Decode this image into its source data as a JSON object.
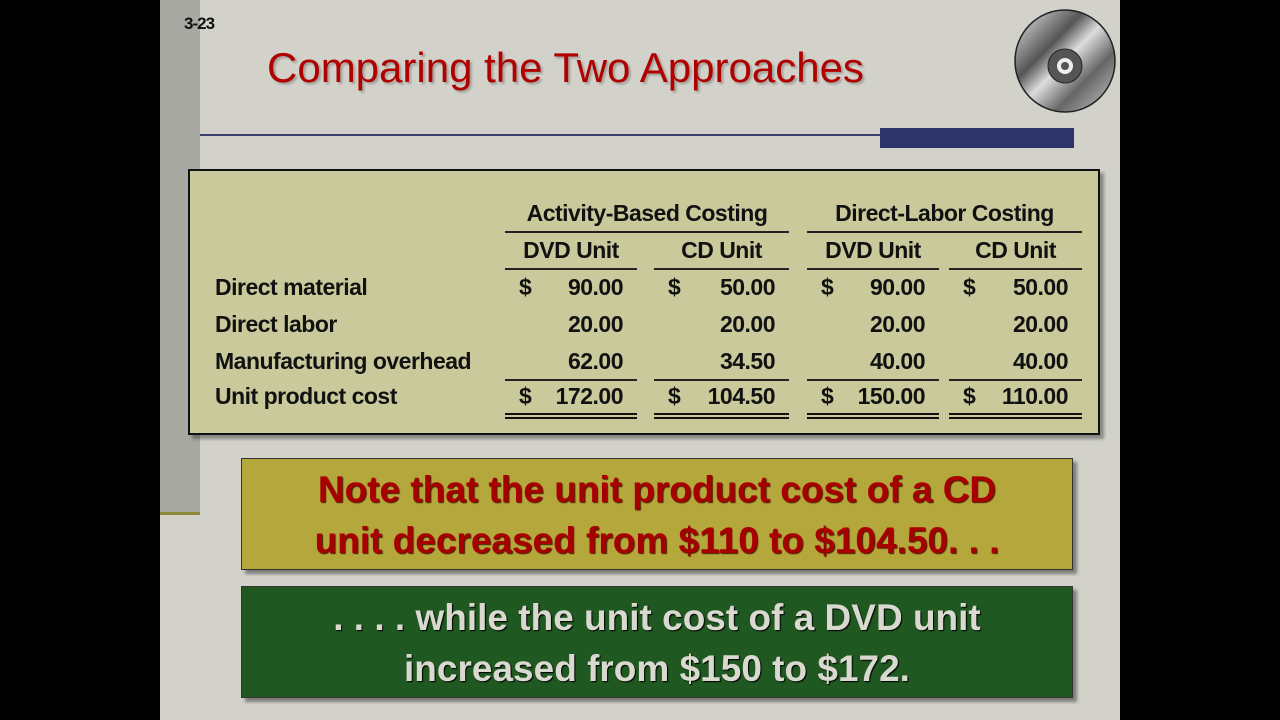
{
  "slide_number": "3-23",
  "title": "Comparing the Two Approaches",
  "colors": {
    "title": "#b00000",
    "table_bg": "#c9c99c",
    "note1_bg": "#b4a83c",
    "note2_bg": "#1f5820"
  },
  "icon": "cd-disc-icon",
  "table": {
    "groups": [
      "Activity-Based Costing",
      "Direct-Labor Costing"
    ],
    "columns": [
      "DVD Unit",
      "CD Unit",
      "DVD Unit",
      "CD Unit"
    ],
    "rows": [
      {
        "label": "Direct material",
        "cells": [
          [
            "$",
            "90.00"
          ],
          [
            "$",
            "50.00"
          ],
          [
            "$",
            "90.00"
          ],
          [
            "$",
            "50.00"
          ]
        ]
      },
      {
        "label": "Direct labor",
        "cells": [
          [
            "",
            "20.00"
          ],
          [
            "",
            "20.00"
          ],
          [
            "",
            "20.00"
          ],
          [
            "",
            "20.00"
          ]
        ]
      },
      {
        "label": "Manufacturing overhead",
        "cells": [
          [
            "",
            "62.00"
          ],
          [
            "",
            "34.50"
          ],
          [
            "",
            "40.00"
          ],
          [
            "",
            "40.00"
          ]
        ]
      },
      {
        "label": "Unit product cost",
        "cells": [
          [
            "$",
            "172.00"
          ],
          [
            "$",
            "104.50"
          ],
          [
            "$",
            "150.00"
          ],
          [
            "$",
            "110.00"
          ]
        ]
      }
    ]
  },
  "note1": [
    "Note that the unit product cost of a CD",
    "unit decreased from $110 to $104.50. . ."
  ],
  "note2": [
    ". . . . while the unit cost of a DVD unit",
    "increased from $150 to $172."
  ]
}
